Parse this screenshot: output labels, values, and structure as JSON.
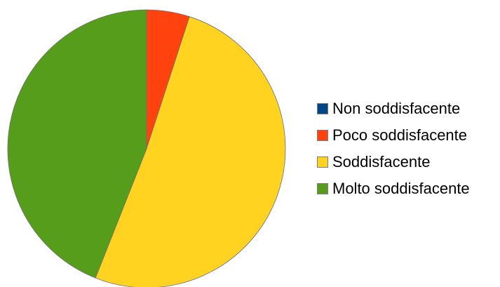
{
  "chart_data": {
    "type": "pie",
    "categories": [
      "Non soddisfacente",
      "Poco soddisfacente",
      "Soddisfacente",
      "Molto soddisfacente"
    ],
    "values": [
      0,
      5,
      51,
      44
    ],
    "colors": [
      "#004586",
      "#ff420e",
      "#ffd320",
      "#579d1c"
    ],
    "legend_position": "right",
    "start_angle": "12 o'clock",
    "direction": "clockwise"
  }
}
